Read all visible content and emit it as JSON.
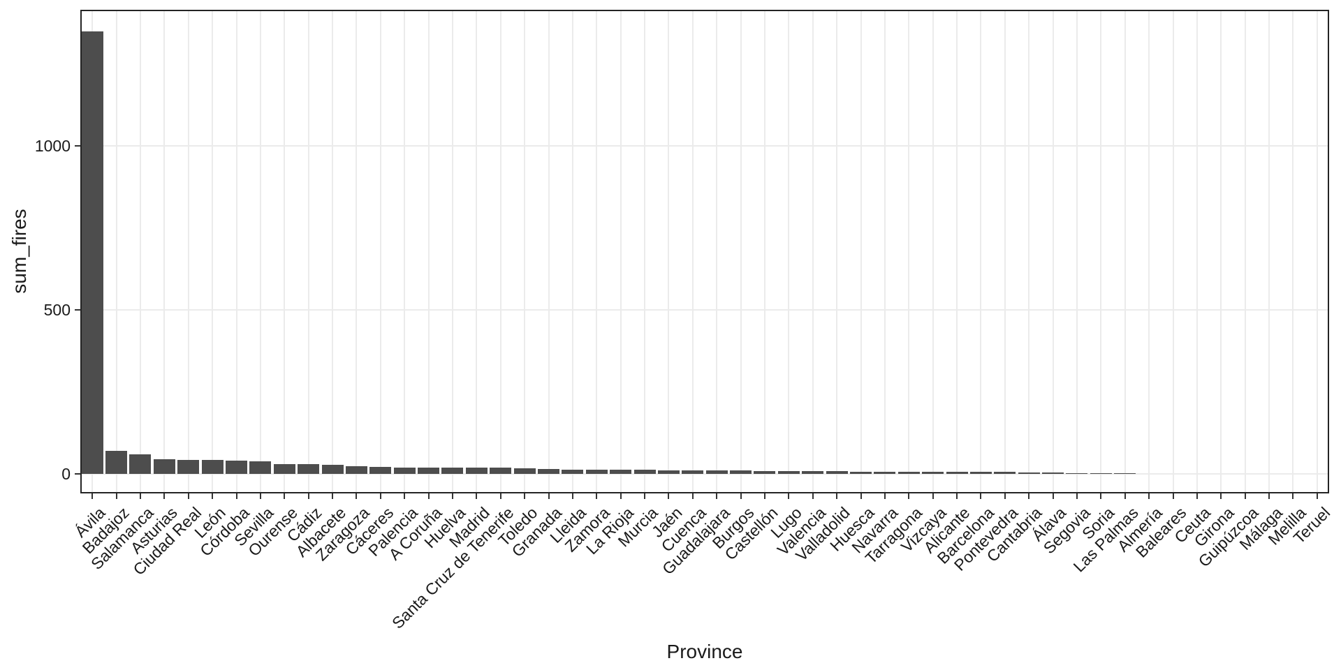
{
  "chart_data": {
    "type": "bar",
    "title": "",
    "xlabel": "Province",
    "ylabel": "sum_fires",
    "legend": "none",
    "grid": "major",
    "bar_color": "#4d4d4d",
    "gridline_color": "#ebebeb",
    "panel_border_color": "#242424",
    "yticks": [
      0,
      500,
      1000
    ],
    "ylim": [
      -60,
      1416
    ],
    "categories": [
      "Ávila",
      "Badajoz",
      "Salamanca",
      "Asturias",
      "Ciudad Real",
      "León",
      "Córdoba",
      "Sevilla",
      "Ourense",
      "Cádiz",
      "Albacete",
      "Zaragoza",
      "Cáceres",
      "Palencia",
      "A Coruña",
      "Huelva",
      "Madrid",
      "Santa Cruz de Tenerife",
      "Toledo",
      "Granada",
      "Lleida",
      "Zamora",
      "La Rioja",
      "Murcia",
      "Jaén",
      "Cuenca",
      "Guadalajara",
      "Burgos",
      "Castellón",
      "Lugo",
      "Valencia",
      "Valladolid",
      "Huesca",
      "Navarra",
      "Tarragona",
      "Vizcaya",
      "Alicante",
      "Barcelona",
      "Pontevedra",
      "Cantabria",
      "Álava",
      "Segovia",
      "Soria",
      "Las Palmas",
      "Almería",
      "Baleares",
      "Ceuta",
      "Girona",
      "Guipúzcoa",
      "Málaga",
      "Melilla",
      "Teruel"
    ],
    "values": [
      1350,
      70,
      60,
      45,
      43,
      43,
      40,
      38,
      30,
      30,
      27,
      23,
      20,
      19,
      19,
      18,
      18,
      18,
      17,
      15,
      13,
      13,
      12,
      12,
      11,
      11,
      10,
      10,
      9,
      9,
      8,
      8,
      7,
      7,
      6,
      6,
      6,
      5,
      5,
      4,
      4,
      2,
      2,
      1,
      0,
      0,
      0,
      0,
      0,
      0,
      0,
      0
    ]
  }
}
